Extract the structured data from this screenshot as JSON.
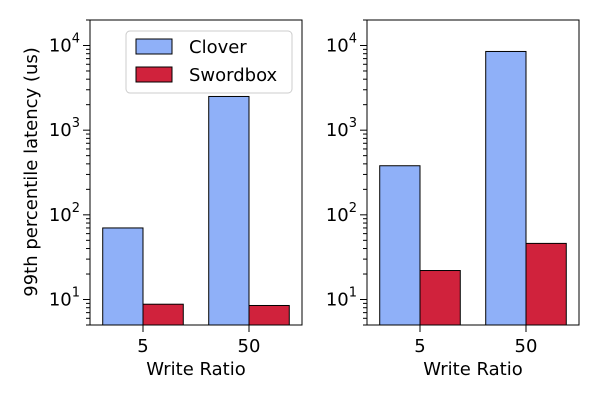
{
  "chart_data": [
    {
      "type": "bar",
      "scale": "log",
      "categories": [
        "5",
        "50"
      ],
      "series": [
        {
          "name": "Clover",
          "values": [
            70,
            2500
          ]
        },
        {
          "name": "Swordbox",
          "values": [
            8.8,
            8.5
          ]
        }
      ],
      "xlabel": "Write Ratio",
      "ylabel": "99th percentile latency (us)",
      "ylim": [
        5,
        20000
      ],
      "yticks": [
        {
          "base": "10",
          "exp": "1"
        },
        {
          "base": "10",
          "exp": "2"
        },
        {
          "base": "10",
          "exp": "3"
        },
        {
          "base": "10",
          "exp": "4"
        }
      ],
      "legend": "top-right",
      "grid": false
    },
    {
      "type": "bar",
      "scale": "log",
      "categories": [
        "5",
        "50"
      ],
      "series": [
        {
          "name": "Clover",
          "values": [
            380,
            8500
          ]
        },
        {
          "name": "Swordbox",
          "values": [
            22,
            46
          ]
        }
      ],
      "xlabel": "Write Ratio",
      "ylabel": "",
      "ylim": [
        5,
        20000
      ],
      "yticks": [
        {
          "base": "10",
          "exp": "1"
        },
        {
          "base": "10",
          "exp": "2"
        },
        {
          "base": "10",
          "exp": "3"
        },
        {
          "base": "10",
          "exp": "4"
        }
      ],
      "grid": false
    }
  ],
  "colors": {
    "Clover": "#8fb0f8",
    "Swordbox": "#d0223c"
  }
}
